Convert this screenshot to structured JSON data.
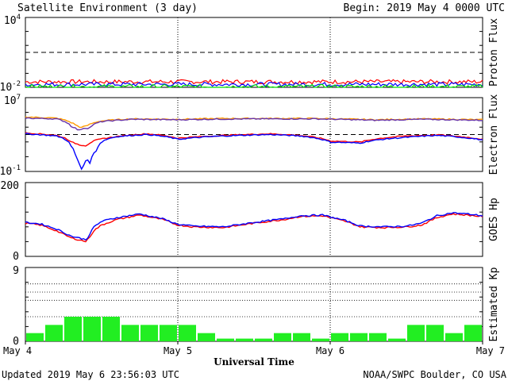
{
  "header": {
    "title": "Satellite Environment (3 day)",
    "begin": "Begin:  2019 May 4 0000 UTC"
  },
  "footer": {
    "updated": "Updated 2019 May  6 23:56:03 UTC",
    "source": "NOAA/SWPC Boulder, CO USA"
  },
  "chart_data": [
    {
      "type": "line",
      "ylabel": "Proton Flux",
      "yscale": "log",
      "ylim": [
        0.01,
        10000
      ],
      "ytick_labels": [
        {
          "base": "10",
          "exp": "4"
        },
        {
          "base": "10",
          "exp": "-2"
        }
      ],
      "threshold": 10,
      "x_days": [
        0,
        3
      ],
      "series": [
        {
          "color": "#ff0000",
          "level": 0.03,
          "noise": 0.18
        },
        {
          "color": "#0000ff",
          "level": 0.018,
          "noise": 0.18
        },
        {
          "color": "#00e000",
          "level": 0.011,
          "noise": 0.2
        }
      ]
    },
    {
      "type": "line",
      "ylabel": "Electron Flux",
      "yscale": "log",
      "ylim": [
        0.1,
        10000000
      ],
      "ytick_labels": [
        {
          "base": "10",
          "exp": "7"
        },
        {
          "base": "10",
          "exp": "-1"
        }
      ],
      "threshold": 1000,
      "series": [
        {
          "color": "#ff9900",
          "points": [
            [
              0,
              80000
            ],
            [
              0.2,
              60000
            ],
            [
              0.3,
              20000
            ],
            [
              0.35,
              6000
            ],
            [
              0.4,
              8000
            ],
            [
              0.5,
              30000
            ],
            [
              0.7,
              50000
            ],
            [
              1.0,
              45000
            ],
            [
              1.3,
              55000
            ],
            [
              1.6,
              55000
            ],
            [
              1.9,
              55000
            ],
            [
              2.3,
              40000
            ],
            [
              2.6,
              50000
            ],
            [
              3.0,
              40000
            ]
          ]
        },
        {
          "color": "#6633aa",
          "points": [
            [
              0,
              60000
            ],
            [
              0.2,
              50000
            ],
            [
              0.3,
              8000
            ],
            [
              0.35,
              2500
            ],
            [
              0.38,
              5000
            ],
            [
              0.42,
              5000
            ],
            [
              0.5,
              25000
            ],
            [
              0.7,
              45000
            ],
            [
              1.0,
              40000
            ],
            [
              1.3,
              48000
            ],
            [
              1.6,
              50000
            ],
            [
              1.9,
              50000
            ],
            [
              2.3,
              35000
            ],
            [
              2.6,
              45000
            ],
            [
              3.0,
              35000
            ]
          ]
        },
        {
          "color": "#ff0000",
          "points": [
            [
              0,
              1500
            ],
            [
              0.2,
              800
            ],
            [
              0.3,
              150
            ],
            [
              0.35,
              80
            ],
            [
              0.4,
              60
            ],
            [
              0.45,
              200
            ],
            [
              0.6,
              600
            ],
            [
              0.8,
              1200
            ],
            [
              1.0,
              400
            ],
            [
              1.3,
              800
            ],
            [
              1.6,
              1200
            ],
            [
              1.8,
              800
            ],
            [
              2.0,
              200
            ],
            [
              2.2,
              150
            ],
            [
              2.5,
              700
            ],
            [
              2.7,
              900
            ],
            [
              3.0,
              300
            ]
          ]
        },
        {
          "color": "#0000ff",
          "points": [
            [
              0,
              1200
            ],
            [
              0.2,
              700
            ],
            [
              0.3,
              50
            ],
            [
              0.33,
              3
            ],
            [
              0.36,
              0.1
            ],
            [
              0.38,
              0.3
            ],
            [
              0.4,
              2
            ],
            [
              0.43,
              0.5
            ],
            [
              0.47,
              20
            ],
            [
              0.6,
              600
            ],
            [
              0.8,
              1000
            ],
            [
              1.0,
              300
            ],
            [
              1.3,
              700
            ],
            [
              1.6,
              1000
            ],
            [
              1.8,
              700
            ],
            [
              2.0,
              150
            ],
            [
              2.2,
              120
            ],
            [
              2.5,
              500
            ],
            [
              2.7,
              800
            ],
            [
              3.0,
              250
            ]
          ]
        }
      ]
    },
    {
      "type": "line",
      "ylabel": "GOES Hp",
      "ylim": [
        0,
        200
      ],
      "ytick_labels": [
        "200",
        "0"
      ],
      "series": [
        {
          "color": "#ff0000",
          "points": [
            [
              0,
              90
            ],
            [
              0.1,
              85
            ],
            [
              0.2,
              70
            ],
            [
              0.3,
              50
            ],
            [
              0.4,
              40
            ],
            [
              0.45,
              70
            ],
            [
              0.5,
              85
            ],
            [
              0.6,
              100
            ],
            [
              0.75,
              112
            ],
            [
              0.9,
              100
            ],
            [
              1.0,
              85
            ],
            [
              1.1,
              80
            ],
            [
              1.3,
              78
            ],
            [
              1.5,
              90
            ],
            [
              1.7,
              100
            ],
            [
              1.8,
              108
            ],
            [
              1.95,
              110
            ],
            [
              2.1,
              95
            ],
            [
              2.2,
              80
            ],
            [
              2.35,
              78
            ],
            [
              2.5,
              80
            ],
            [
              2.6,
              85
            ],
            [
              2.7,
              105
            ],
            [
              2.8,
              115
            ],
            [
              2.9,
              112
            ],
            [
              3.0,
              108
            ]
          ]
        },
        {
          "color": "#0000ff",
          "points": [
            [
              0,
              92
            ],
            [
              0.1,
              88
            ],
            [
              0.2,
              75
            ],
            [
              0.3,
              55
            ],
            [
              0.4,
              45
            ],
            [
              0.45,
              80
            ],
            [
              0.5,
              95
            ],
            [
              0.6,
              105
            ],
            [
              0.75,
              115
            ],
            [
              0.9,
              102
            ],
            [
              1.0,
              87
            ],
            [
              1.1,
              82
            ],
            [
              1.3,
              80
            ],
            [
              1.5,
              92
            ],
            [
              1.7,
              102
            ],
            [
              1.8,
              110
            ],
            [
              1.95,
              112
            ],
            [
              2.1,
              97
            ],
            [
              2.2,
              82
            ],
            [
              2.35,
              80
            ],
            [
              2.5,
              82
            ],
            [
              2.6,
              90
            ],
            [
              2.7,
              110
            ],
            [
              2.8,
              118
            ],
            [
              2.9,
              115
            ],
            [
              3.0,
              110
            ]
          ]
        }
      ]
    },
    {
      "type": "bar",
      "ylabel": "Estimated Kp",
      "ylim": [
        0,
        9
      ],
      "ytick_labels": [
        "9",
        "0"
      ],
      "color": "#22ee22",
      "categories_per_day": 8,
      "values": [
        1,
        2,
        3,
        3,
        3,
        2,
        2,
        2,
        2,
        1,
        0.33,
        0.33,
        0.33,
        1,
        1,
        0.33,
        1,
        1,
        1,
        0.33,
        2,
        2,
        1,
        2
      ]
    }
  ],
  "axes": {
    "xlabel": "Universal Time",
    "xtick_labels": [
      "May 4",
      "May 5",
      "May 6",
      "May 7"
    ]
  }
}
